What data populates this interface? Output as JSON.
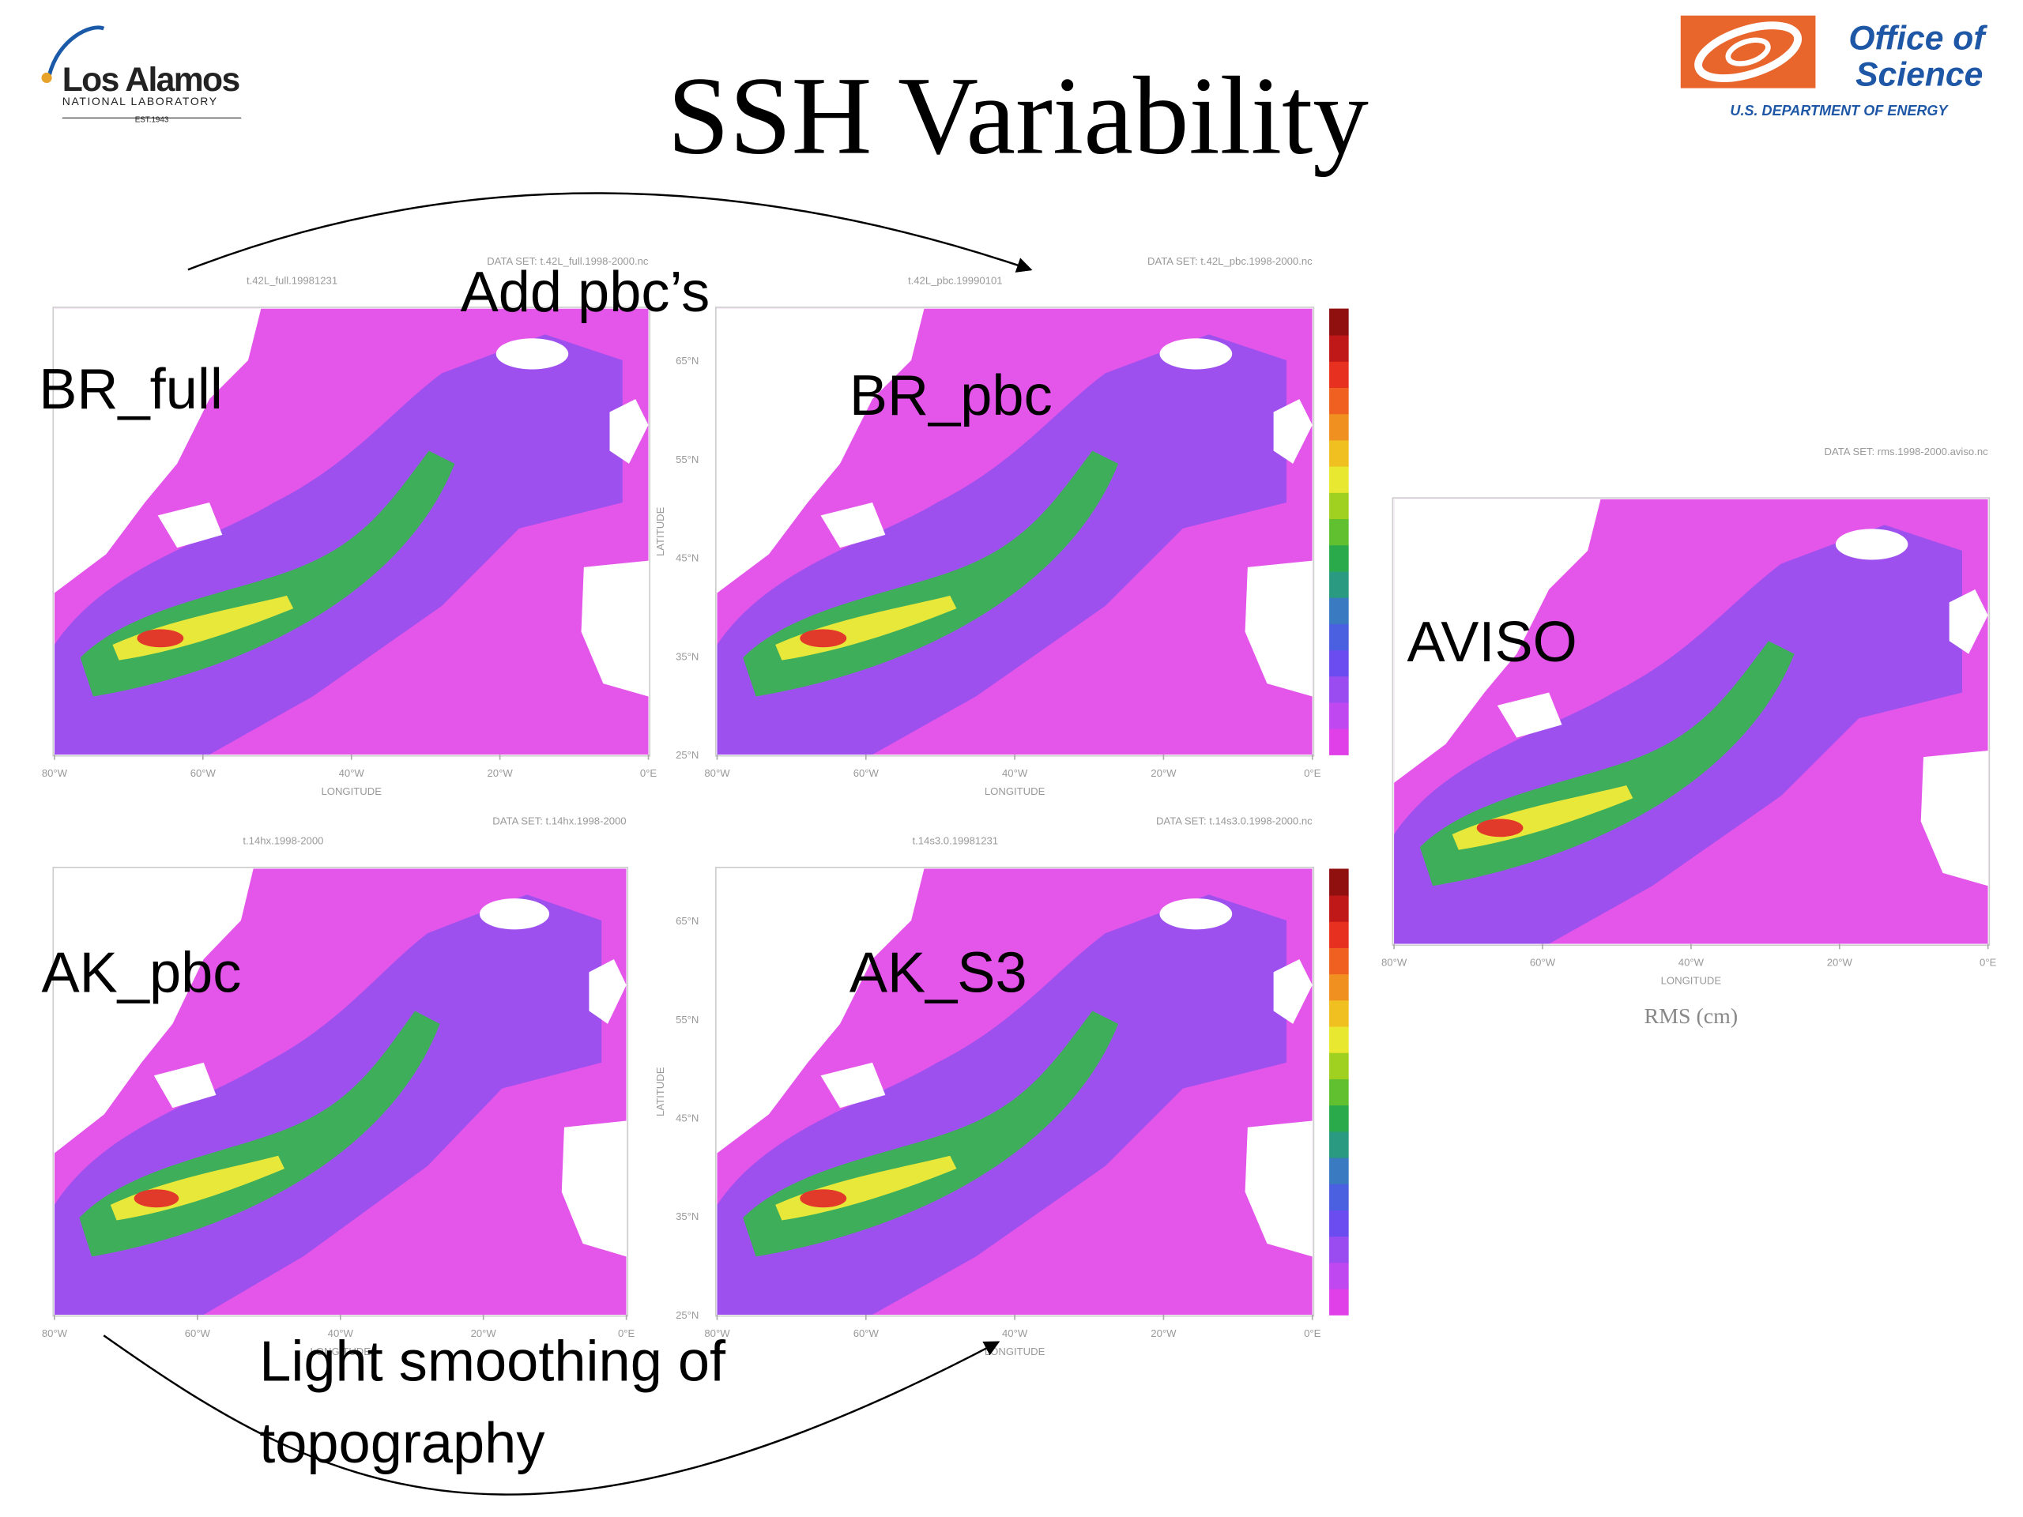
{
  "header": {
    "title": "SSH Variability",
    "lanl": {
      "name": "Los Alamos",
      "sub": "NATIONAL LABORATORY",
      "est": "EST.1943"
    },
    "doe": {
      "line1": "Office of",
      "line2": "Science",
      "dept": "U.S. DEPARTMENT OF ENERGY"
    }
  },
  "annotations": {
    "top": "Add pbc’s",
    "bottom": [
      "Light smoothing of",
      "topography"
    ]
  },
  "panels": [
    {
      "label": "BR_full",
      "dataset": "DATA SET: t.42L_full.1998-2000.nc",
      "field": "t.42L_full.19981231"
    },
    {
      "label": "BR_pbc",
      "dataset": "DATA SET: t.42L_pbc.1998-2000.nc",
      "field": "t.42L_pbc.19990101"
    },
    {
      "label": "AK_pbc",
      "dataset": "DATA SET: t.14hx.1998-2000",
      "field": "t.14hx.1998-2000"
    },
    {
      "label": "AK_S3",
      "dataset": "DATA SET: t.14s3.0.1998-2000.nc",
      "field": "t.14s3.0.19981231"
    },
    {
      "label": "AVISO",
      "dataset": "DATA SET: rms.1998-2000.aviso.nc"
    }
  ],
  "axes": {
    "x_label": "LONGITUDE",
    "y_label": "LATITUDE",
    "x_ticks": [
      "80°W",
      "60°W",
      "40°W",
      "20°W",
      "0°E"
    ],
    "y_ticks": [
      "25°N",
      "35°N",
      "45°N",
      "55°N",
      "65°N"
    ]
  },
  "colorbar_label": "RMS (cm)"
}
